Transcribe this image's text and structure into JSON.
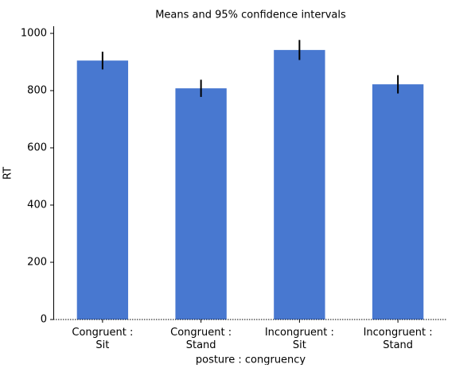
{
  "chart_data": {
    "type": "bar",
    "title": "Means and 95% confidence intervals",
    "x_label": "posture : congruency",
    "y_label": "RT",
    "categories": [
      [
        "Congruent :",
        "Sit"
      ],
      [
        "Congruent :",
        "Stand"
      ],
      [
        "Incongruent :",
        "Sit"
      ],
      [
        "Incongruent :",
        "Stand"
      ]
    ],
    "values": [
      905,
      808,
      942,
      822
    ],
    "errors": [
      31,
      30,
      35,
      32
    ],
    "color": "#4878d0",
    "ylim": [
      0,
      1025
    ],
    "yticks": [
      0,
      200,
      400,
      600,
      800,
      1000
    ],
    "zero_line": true
  }
}
